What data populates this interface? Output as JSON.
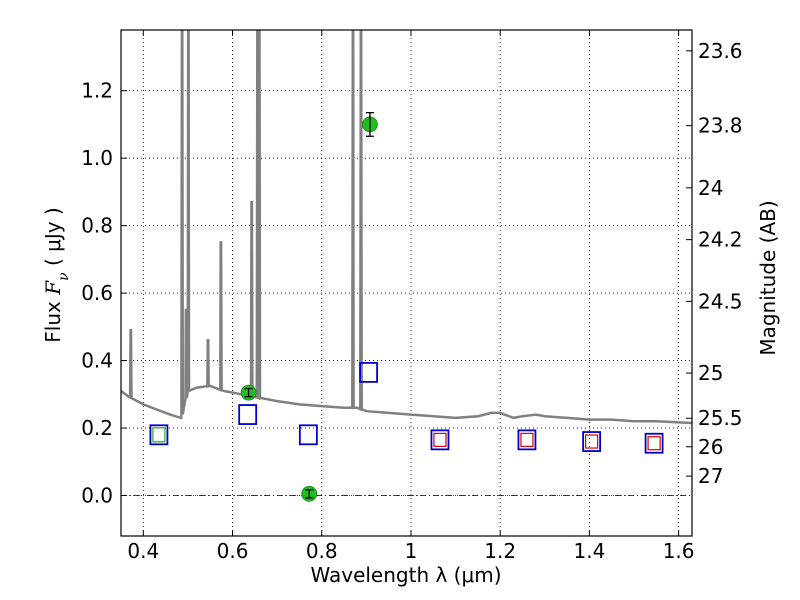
{
  "chart_data": {
    "type": "scatter",
    "xlabel": "Wavelength  λ (μm)",
    "ylabel": "Flux  F_ν  ( μJy )",
    "ylabel_parts": {
      "prefix": "Flux  ",
      "symbol": "F",
      "subscript": "ν",
      "unit": "  ( μJy )"
    },
    "ylabel_right": "Magnitude (AB)",
    "xlim": [
      0.35,
      1.63
    ],
    "ylim": [
      -0.12,
      1.38
    ],
    "grid": true,
    "x_ticks": [
      0.4,
      0.6,
      0.8,
      1.0,
      1.2,
      1.4,
      1.6
    ],
    "x_tick_labels": [
      "0.4",
      "0.6",
      "0.8",
      "1",
      "1.2",
      "1.4",
      "1.6"
    ],
    "y_ticks": [
      0.0,
      0.2,
      0.4,
      0.6,
      0.8,
      1.0,
      1.2
    ],
    "y_tick_labels": [
      "0.0",
      "0.2",
      "0.4",
      "0.6",
      "0.8",
      "1.0",
      "1.2"
    ],
    "mag_tick_labels": [
      "23.6",
      "23.8",
      "24",
      "24.2",
      "24.5",
      "25",
      "25.5",
      "26",
      "27"
    ],
    "mag_tick_values": [
      23.6,
      23.8,
      24.0,
      24.2,
      24.5,
      25.0,
      25.5,
      26.0,
      27.0
    ],
    "colors": {
      "spectrum": "#808080",
      "observed_point": "#22bb22",
      "model_box": "#0000cc",
      "ir_box": "#dd0000",
      "optical_inner_box": "#22aa22",
      "zero_line": "#000000",
      "grid": "#000000"
    },
    "spectrum": {
      "continuum": [
        [
          0.35,
          0.31
        ],
        [
          0.37,
          0.29
        ],
        [
          0.4,
          0.27
        ],
        [
          0.43,
          0.255
        ],
        [
          0.46,
          0.24
        ],
        [
          0.485,
          0.23
        ],
        [
          0.5,
          0.31
        ],
        [
          0.52,
          0.32
        ],
        [
          0.55,
          0.325
        ],
        [
          0.58,
          0.31
        ],
        [
          0.62,
          0.3
        ],
        [
          0.66,
          0.29
        ],
        [
          0.7,
          0.28
        ],
        [
          0.75,
          0.27
        ],
        [
          0.8,
          0.265
        ],
        [
          0.85,
          0.26
        ],
        [
          0.88,
          0.26
        ],
        [
          0.9,
          0.25
        ],
        [
          0.95,
          0.245
        ],
        [
          1.0,
          0.24
        ],
        [
          1.05,
          0.235
        ],
        [
          1.1,
          0.23
        ],
        [
          1.15,
          0.235
        ],
        [
          1.18,
          0.245
        ],
        [
          1.2,
          0.245
        ],
        [
          1.23,
          0.23
        ],
        [
          1.25,
          0.235
        ],
        [
          1.28,
          0.24
        ],
        [
          1.3,
          0.235
        ],
        [
          1.35,
          0.23
        ],
        [
          1.4,
          0.225
        ],
        [
          1.45,
          0.225
        ],
        [
          1.5,
          0.22
        ],
        [
          1.55,
          0.22
        ],
        [
          1.63,
          0.215
        ]
      ],
      "emission_lines": [
        {
          "x": 0.372,
          "peak": 0.49
        },
        {
          "x": 0.487,
          "peak": 1.38
        },
        {
          "x": 0.496,
          "peak": 0.55
        },
        {
          "x": 0.501,
          "peak": 1.38
        },
        {
          "x": 0.545,
          "peak": 0.46
        },
        {
          "x": 0.574,
          "peak": 0.75
        },
        {
          "x": 0.643,
          "peak": 0.87
        },
        {
          "x": 0.656,
          "peak": 1.38
        },
        {
          "x": 0.66,
          "peak": 1.38
        },
        {
          "x": 0.87,
          "peak": 1.38
        },
        {
          "x": 0.888,
          "peak": 1.38
        }
      ]
    },
    "observed_points": [
      {
        "x": 0.636,
        "y": 0.305,
        "yerr": 0.012
      },
      {
        "x": 0.772,
        "y": 0.005,
        "yerr": 0.012
      },
      {
        "x": 0.908,
        "y": 1.1,
        "yerr": 0.035
      }
    ],
    "model_boxes": [
      {
        "x": 0.435,
        "y": 0.18,
        "inner": "optical"
      },
      {
        "x": 0.634,
        "y": 0.24,
        "inner": "none"
      },
      {
        "x": 0.77,
        "y": 0.18,
        "inner": "none"
      },
      {
        "x": 0.905,
        "y": 0.365,
        "inner": "none"
      },
      {
        "x": 1.065,
        "y": 0.165,
        "inner": "ir"
      },
      {
        "x": 1.26,
        "y": 0.165,
        "inner": "ir"
      },
      {
        "x": 1.405,
        "y": 0.16,
        "inner": "ir"
      },
      {
        "x": 1.545,
        "y": 0.155,
        "inner": "ir"
      }
    ]
  }
}
